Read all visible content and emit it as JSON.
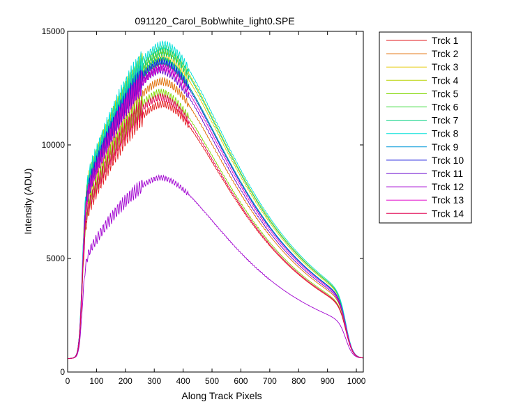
{
  "chart_data": {
    "type": "line",
    "title": "091120_Carol_Bob\\white_light0.SPE",
    "xlabel": "Along Track Pixels",
    "ylabel": "Intensity (ADU)",
    "xlim": [
      0,
      1024
    ],
    "ylim": [
      0,
      15000
    ],
    "xticks": [
      0,
      100,
      200,
      300,
      400,
      500,
      600,
      700,
      800,
      900,
      1000
    ],
    "yticks": [
      0,
      5000,
      10000,
      15000
    ],
    "grid": false,
    "legend_position": "outside-right-top",
    "series": [
      {
        "name": "Trck 1",
        "color": "#e31a1c",
        "peak": 11800,
        "peak_x": 325
      },
      {
        "name": "Trck 2",
        "color": "#e06c00",
        "peak": 12800,
        "peak_x": 325
      },
      {
        "name": "Trck 3",
        "color": "#e6c800",
        "peak": 13900,
        "peak_x": 330
      },
      {
        "name": "Trck 4",
        "color": "#b8d400",
        "peak": 14200,
        "peak_x": 330
      },
      {
        "name": "Trck 5",
        "color": "#80d600",
        "peak": 12300,
        "peak_x": 320
      },
      {
        "name": "Trck 6",
        "color": "#2ad82a",
        "peak": 13700,
        "peak_x": 325
      },
      {
        "name": "Trck 7",
        "color": "#00d080",
        "peak": 14100,
        "peak_x": 330
      },
      {
        "name": "Trck 8",
        "color": "#00e0d8",
        "peak": 14400,
        "peak_x": 330
      },
      {
        "name": "Trck 9",
        "color": "#0098d8",
        "peak": 13700,
        "peak_x": 325
      },
      {
        "name": "Trck 10",
        "color": "#1a1adc",
        "peak": 13600,
        "peak_x": 325
      },
      {
        "name": "Trck 11",
        "color": "#6400cc",
        "peak": 13300,
        "peak_x": 320
      },
      {
        "name": "Trck 12",
        "color": "#a000d0",
        "peak": 8550,
        "peak_x": 320
      },
      {
        "name": "Trck 13",
        "color": "#e000c8",
        "peak": 13400,
        "peak_x": 325
      },
      {
        "name": "Trck 14",
        "color": "#e00050",
        "peak": 12100,
        "peak_x": 320
      }
    ]
  }
}
